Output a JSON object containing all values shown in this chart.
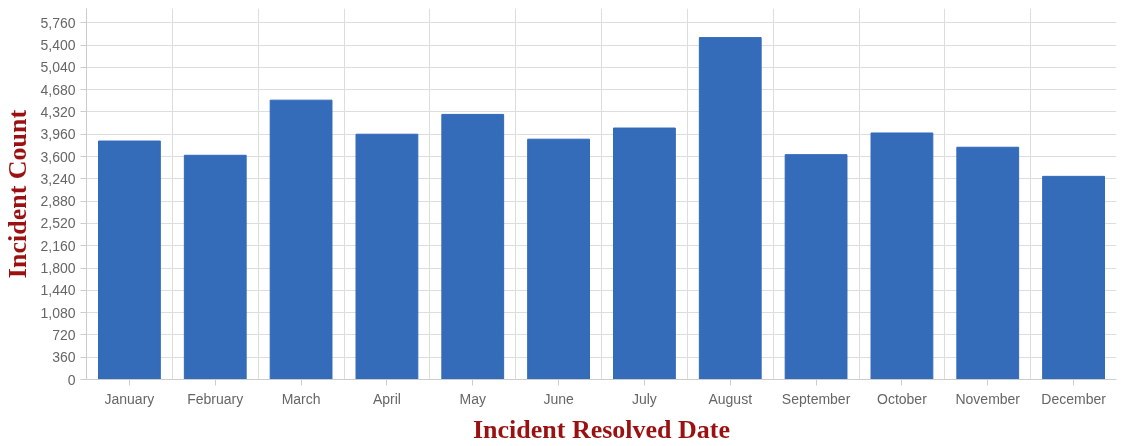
{
  "chart_data": {
    "type": "bar",
    "xlabel": "Incident Resolved Date",
    "ylabel": "Incident Count",
    "categories": [
      "January",
      "February",
      "March",
      "April",
      "May",
      "June",
      "July",
      "August",
      "September",
      "October",
      "November",
      "December"
    ],
    "values": [
      3850,
      3620,
      4510,
      3960,
      4280,
      3880,
      4060,
      5520,
      3630,
      3980,
      3750,
      3280
    ],
    "color": "#3169b9",
    "ylim": [
      0,
      5990
    ],
    "yticks": [
      0,
      {
        "value": 360,
        "label": "360"
      },
      {
        "value": 720,
        "label": "720"
      },
      {
        "value": 1080,
        "label": "1,080"
      },
      {
        "value": 1440,
        "label": "1,440"
      },
      {
        "value": 1800,
        "label": "1,800"
      },
      {
        "value": 2160,
        "label": "2,160"
      },
      {
        "value": 2520,
        "label": "2,520"
      },
      {
        "value": 2880,
        "label": "2,880"
      },
      {
        "value": 3240,
        "label": "3,240"
      },
      {
        "value": 3600,
        "label": "3,600"
      },
      {
        "value": 3960,
        "label": "3,960"
      },
      {
        "value": 4320,
        "label": "4,320"
      },
      {
        "value": 4680,
        "label": "4,680"
      },
      {
        "value": 5040,
        "label": "5,040"
      },
      {
        "value": 5400,
        "label": "5,400"
      },
      {
        "value": 5760,
        "label": "5,760"
      }
    ],
    "grid": true
  }
}
